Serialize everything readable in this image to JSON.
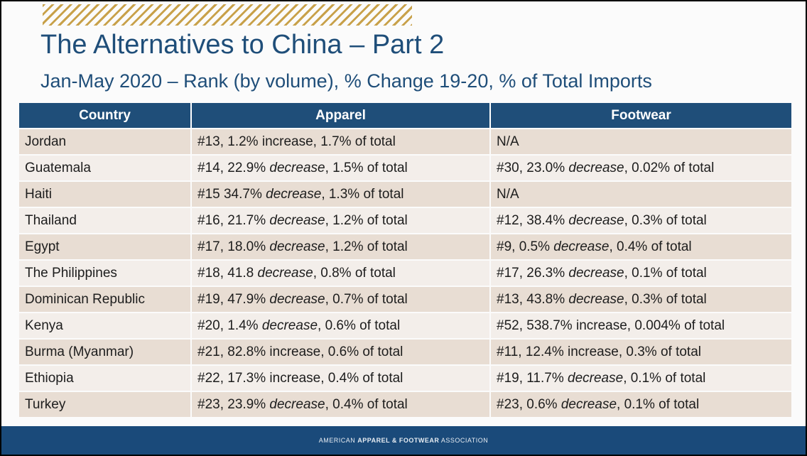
{
  "title": "The Alternatives to China – Part 2",
  "subtitle": "Jan-May 2020 – Rank (by volume), % Change 19-20, % of Total Imports",
  "table": {
    "headers": [
      "Country",
      "Apparel",
      "Footwear"
    ],
    "rows": [
      {
        "country": "Jordan",
        "apparel": [
          "#13, 1.2% increase, 1.7% of total",
          "",
          ""
        ],
        "footwear": [
          "N/A",
          "",
          ""
        ]
      },
      {
        "country": "Guatemala",
        "apparel": [
          "#14, 22.9% ",
          "decrease",
          ", 1.5% of total"
        ],
        "footwear": [
          "#30, 23.0% ",
          "decrease",
          ", 0.02% of total"
        ]
      },
      {
        "country": "Haiti",
        "apparel": [
          "#15 34.7% ",
          "decrease",
          ", 1.3% of total"
        ],
        "footwear": [
          "N/A",
          "",
          ""
        ]
      },
      {
        "country": "Thailand",
        "apparel": [
          "#16, 21.7% ",
          "decrease",
          ", 1.2% of total"
        ],
        "footwear": [
          "#12, 38.4% ",
          "decrease",
          ", 0.3% of total"
        ]
      },
      {
        "country": "Egypt",
        "apparel": [
          "#17, 18.0% ",
          "decrease",
          ", 1.2% of total"
        ],
        "footwear": [
          "#9, 0.5% ",
          "decrease",
          ", 0.4% of total"
        ]
      },
      {
        "country": "The Philippines",
        "apparel": [
          "#18, 41.8 ",
          "decrease",
          ", 0.8% of total"
        ],
        "footwear": [
          "#17, 26.3% ",
          "decrease",
          ", 0.1% of total"
        ]
      },
      {
        "country": "Dominican Republic",
        "apparel": [
          "#19, 47.9% ",
          "decrease",
          ", 0.7% of total"
        ],
        "footwear": [
          "#13, 43.8% ",
          "decrease",
          ", 0.3% of total"
        ]
      },
      {
        "country": "Kenya",
        "apparel": [
          "#20, 1.4% ",
          "decrease",
          ", 0.6% of total"
        ],
        "footwear": [
          "#52, 538.7% increase, 0.004% of total",
          "",
          ""
        ]
      },
      {
        "country": "Burma (Myanmar)",
        "apparel": [
          "#21, 82.8% increase, 0.6% of total",
          "",
          ""
        ],
        "footwear": [
          "#11, 12.4% increase, 0.3% of total",
          "",
          ""
        ]
      },
      {
        "country": "Ethiopia",
        "apparel": [
          "#22, 17.3% increase, 0.4% of total",
          "",
          ""
        ],
        "footwear": [
          "#19, 11.7% ",
          "decrease",
          ", 0.1% of total"
        ]
      },
      {
        "country": "Turkey",
        "apparel": [
          "#23, 23.9% ",
          "decrease",
          ", 0.4% of total"
        ],
        "footwear": [
          "#23, 0.6% ",
          "decrease",
          ", 0.1% of total"
        ]
      }
    ]
  },
  "footer": {
    "assoc_pre": "AMERICAN ",
    "assoc_bold": "APPAREL & FOOTWEAR",
    "assoc_post": " ASSOCIATION"
  },
  "colors": {
    "title": "#1f4e79",
    "header_bg": "#1f4e79",
    "row_odd": "#e8ddd3",
    "row_even": "#f3eeea",
    "footer_bg": "#1a4a7a",
    "hatch": "#c8a14a"
  }
}
